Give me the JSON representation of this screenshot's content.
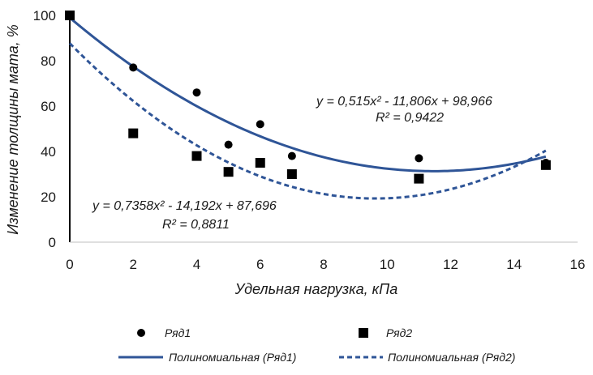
{
  "chart_data": {
    "type": "scatter",
    "xlabel": "Удельная нагрузка, кПа",
    "ylabel": "Изменение толщины мата, %",
    "xlim": [
      0,
      16
    ],
    "ylim": [
      0,
      100
    ],
    "x_ticks": [
      "0",
      "2",
      "4",
      "6",
      "8",
      "10",
      "12",
      "14",
      "16"
    ],
    "y_ticks": [
      "0",
      "20",
      "40",
      "60",
      "80",
      "100"
    ],
    "grid": false,
    "legend_position": "bottom",
    "series": [
      {
        "name": "Ряд1",
        "marker": "circle",
        "color": "#000000",
        "points": [
          [
            0,
            100
          ],
          [
            2,
            77
          ],
          [
            4,
            66
          ],
          [
            5,
            43
          ],
          [
            6,
            52
          ],
          [
            7,
            38
          ],
          [
            11,
            37
          ],
          [
            15,
            35
          ]
        ]
      },
      {
        "name": "Ряд2",
        "marker": "square",
        "color": "#000000",
        "points": [
          [
            0,
            100
          ],
          [
            2,
            48
          ],
          [
            4,
            38
          ],
          [
            5,
            31
          ],
          [
            6,
            35
          ],
          [
            7,
            30
          ],
          [
            11,
            28
          ],
          [
            15,
            34
          ]
        ]
      }
    ],
    "trendlines": [
      {
        "name": "Полиномиальная (Ряд1)",
        "style": "solid",
        "color": "#2f5597",
        "coefficients": [
          0.515,
          -11.806,
          98.966
        ],
        "equation": "y = 0,515x² - 11,806x + 98,966",
        "r2": "R² = 0,9422"
      },
      {
        "name": "Полиномиальная (Ряд2)",
        "style": "dashed",
        "color": "#2f5597",
        "coefficients": [
          0.7358,
          -14.192,
          87.696
        ],
        "equation": "y = 0,7358x² - 14,192x + 87,696",
        "r2": "R² = 0,8811"
      }
    ]
  }
}
